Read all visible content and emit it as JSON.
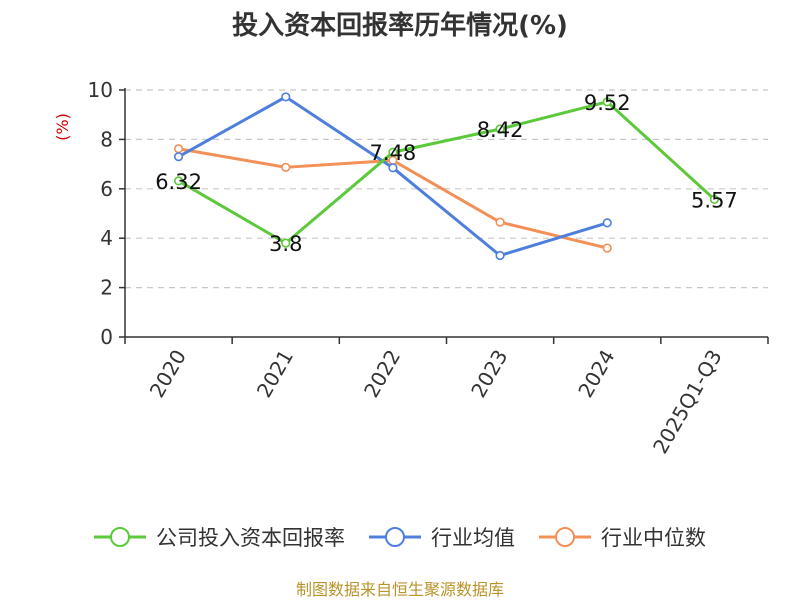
{
  "chart_data": {
    "type": "line",
    "title": "投入资本回报率历年情况(%)",
    "ylabel": "(%)",
    "categories": [
      "2020",
      "2021",
      "2022",
      "2023",
      "2024",
      "2025Q1-Q3"
    ],
    "ylim": [
      0,
      10
    ],
    "yticks": [
      0,
      2,
      4,
      6,
      8,
      10
    ],
    "grid": true,
    "legend_position": "bottom",
    "series": [
      {
        "name": "公司投入资本回报率",
        "color": "#5cc93a",
        "values": [
          6.32,
          3.8,
          7.48,
          8.42,
          9.52,
          5.57
        ],
        "labels": [
          "6.32",
          "3.8",
          "7.48",
          "8.42",
          "9.52",
          "5.57"
        ]
      },
      {
        "name": "行业均值",
        "color": "#4f7fdc",
        "values": [
          7.3,
          9.72,
          6.85,
          3.3,
          4.62,
          null
        ]
      },
      {
        "name": "行业中位数",
        "color": "#f39057",
        "values": [
          7.62,
          6.87,
          7.15,
          4.65,
          3.6,
          null
        ]
      }
    ]
  },
  "source": "制图数据来自恒生聚源数据库"
}
